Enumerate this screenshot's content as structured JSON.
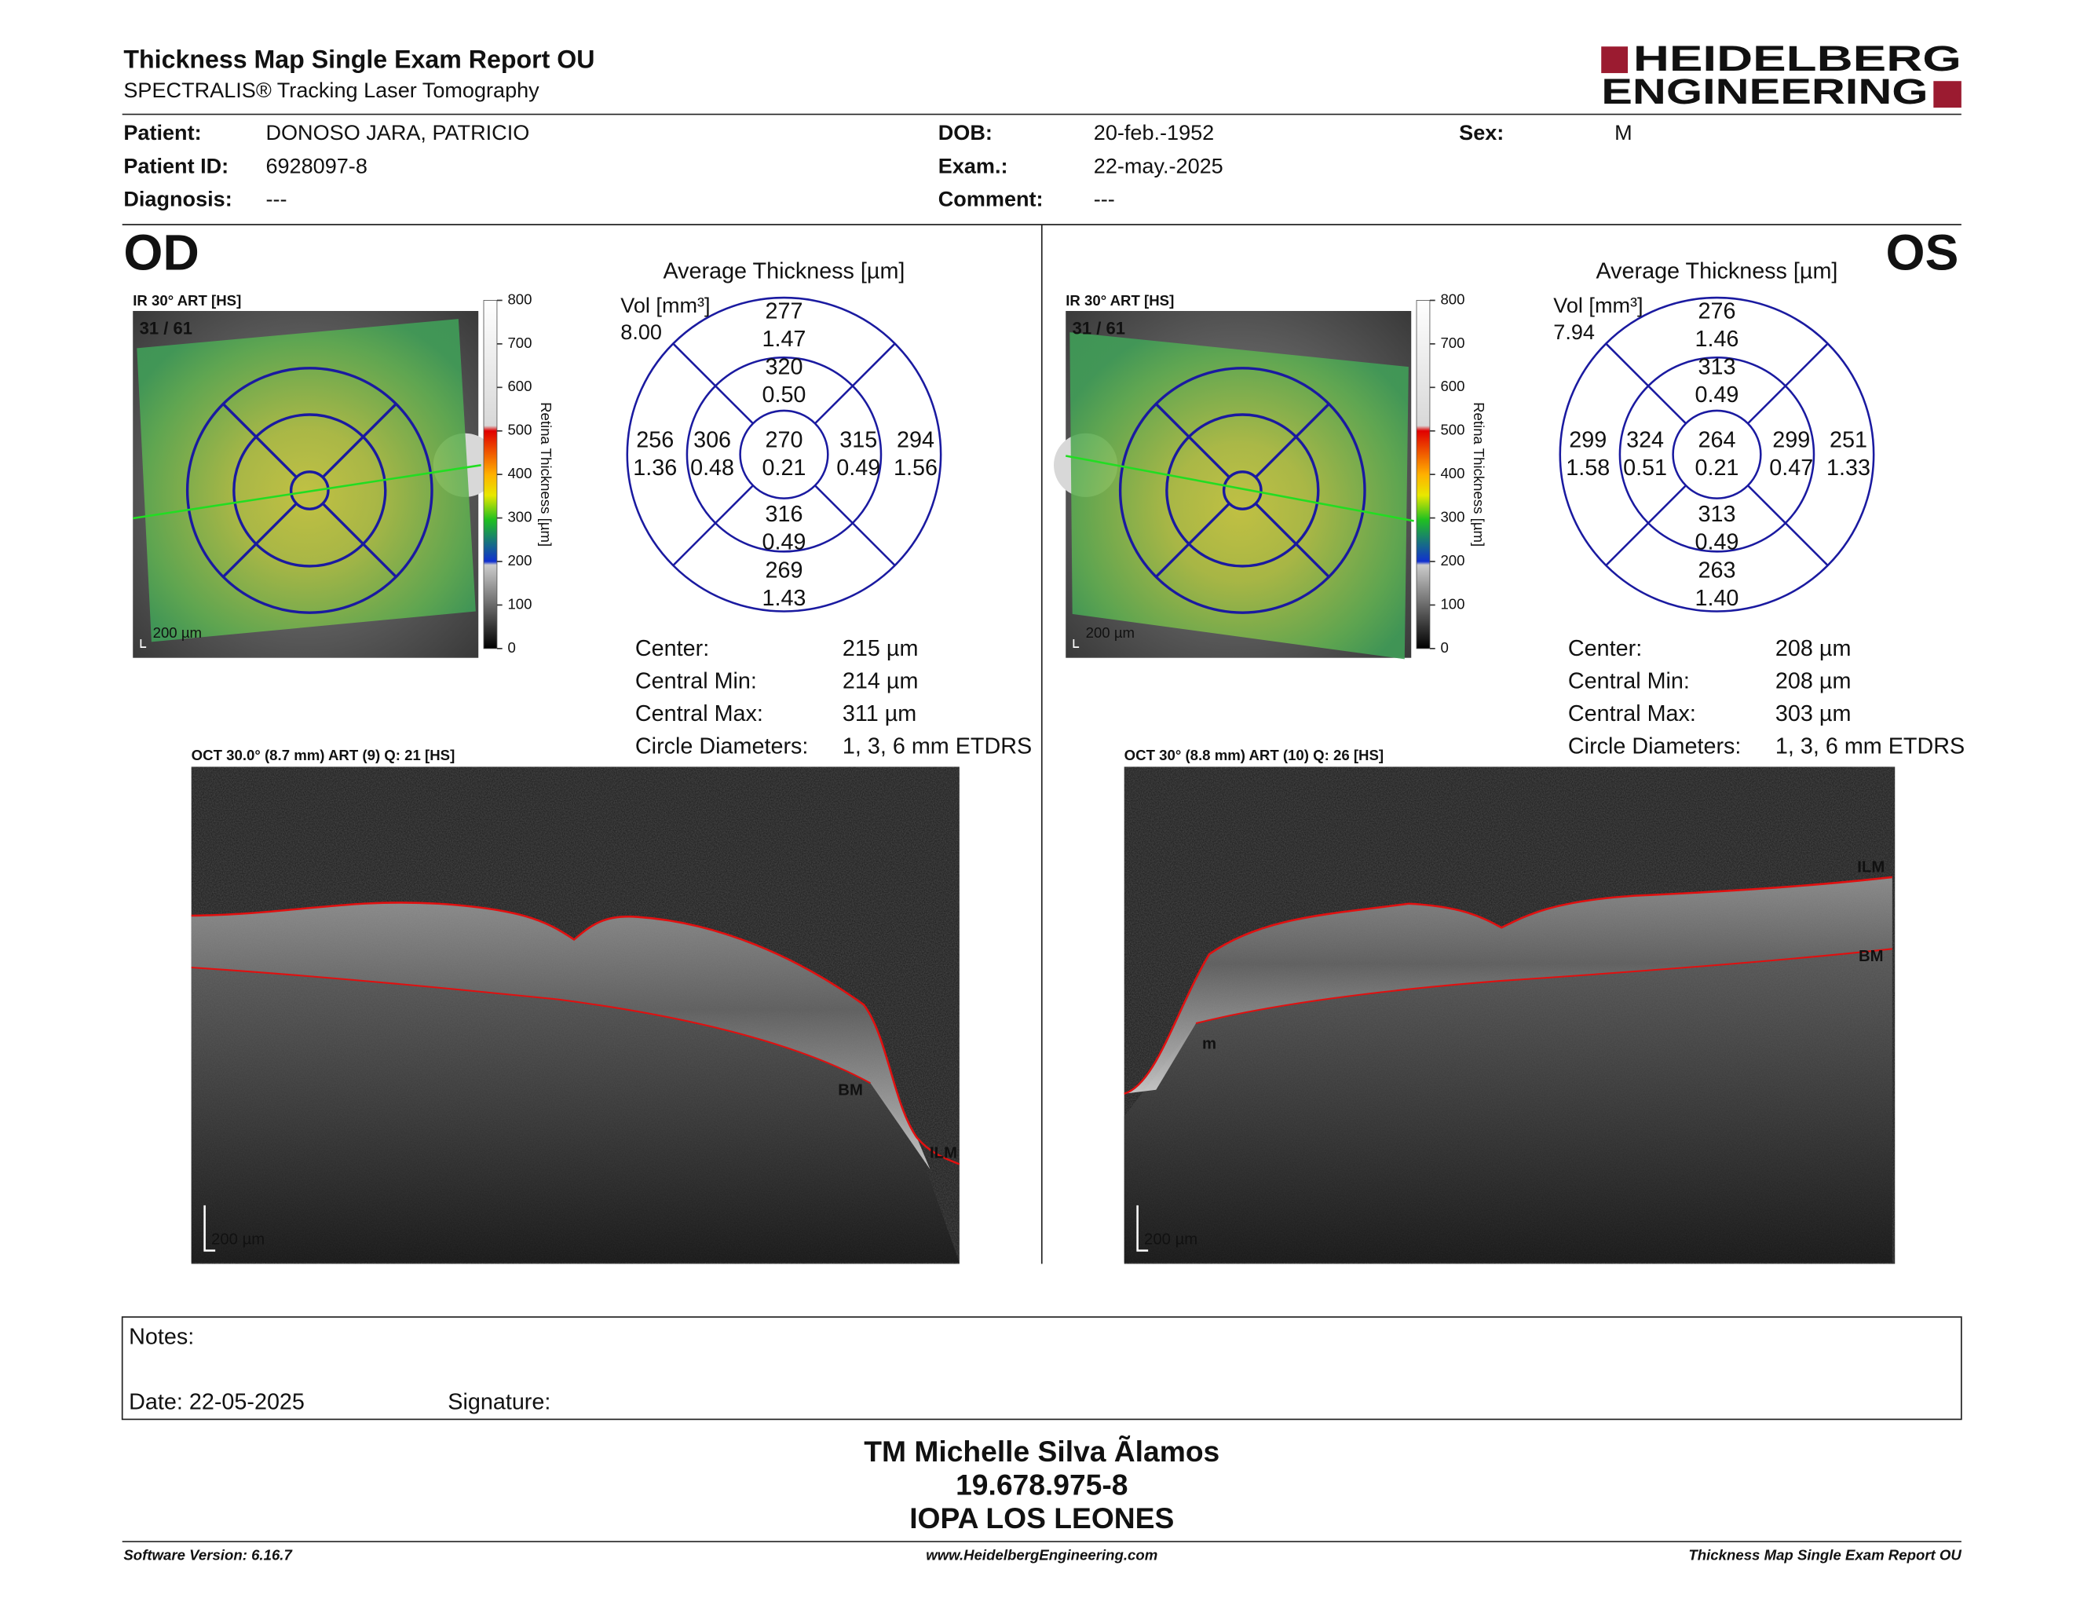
{
  "header": {
    "title": "Thickness Map Single Exam Report OU",
    "subtitle": "SPECTRALIS® Tracking Laser Tomography",
    "logo": [
      "HEIDELBERG",
      "ENGINEERING"
    ]
  },
  "patient": [
    {
      "label": "Patient:",
      "value": "DONOSO JARA, PATRICIO"
    },
    {
      "label": "DOB:",
      "value": "20-feb.-1952"
    },
    {
      "label": "Sex:",
      "value": "M"
    },
    {
      "label": "Patient ID:",
      "value": "6928097-8"
    },
    {
      "label": "Exam.:",
      "value": "22-may.-2025"
    },
    {
      "label": "Diagnosis:",
      "value": "---"
    },
    {
      "label": "Comment:",
      "value": "---"
    }
  ],
  "eyes": [
    {
      "eye": "OD",
      "ir_label": "IR 30° ART [HS]",
      "frame": "31 / 61",
      "scale": "200 µm",
      "colorbar_ticks": [
        "800",
        "700",
        "600",
        "500",
        "400",
        "300",
        "200",
        "100",
        "0"
      ],
      "colorbar_label": "Retina Thickness [µm]",
      "grid_title": "Average Thickness [µm]",
      "vol_label": "Vol [mm³]",
      "vol_total": "8.00",
      "sectors": [
        {
          "thickness": "277",
          "volume": "1.47"
        },
        {
          "thickness": "320",
          "volume": "0.50"
        },
        {
          "thickness": "256",
          "volume": "1.36"
        },
        {
          "thickness": "306",
          "volume": "0.48"
        },
        {
          "thickness": "270",
          "volume": "0.21"
        },
        {
          "thickness": "315",
          "volume": "0.49"
        },
        {
          "thickness": "294",
          "volume": "1.56"
        },
        {
          "thickness": "316",
          "volume": "0.49"
        },
        {
          "thickness": "269",
          "volume": "1.43"
        }
      ],
      "stats": [
        {
          "label": "Center:",
          "value": "215 µm"
        },
        {
          "label": "Central Min:",
          "value": "214 µm"
        },
        {
          "label": "Central Max:",
          "value": "311 µm"
        },
        {
          "label": "Circle Diameters:",
          "value": "1, 3, 6 mm ETDRS"
        }
      ],
      "oct_label": "OCT 30.0° (8.7 mm) ART (9) Q: 21 [HS]",
      "oct_scale": "200 µm",
      "oct_markers": [
        "BM",
        "ILM"
      ]
    },
    {
      "eye": "OS",
      "ir_label": "IR 30° ART [HS]",
      "frame": "31 / 61",
      "scale": "200 µm",
      "colorbar_ticks": [
        "800",
        "700",
        "600",
        "500",
        "400",
        "300",
        "200",
        "100",
        "0"
      ],
      "colorbar_label": "Retina Thickness [µm]",
      "grid_title": "Average Thickness [µm]",
      "vol_label": "Vol [mm³]",
      "vol_total": "7.94",
      "sectors": [
        {
          "thickness": "276",
          "volume": "1.46"
        },
        {
          "thickness": "313",
          "volume": "0.49"
        },
        {
          "thickness": "299",
          "volume": "1.58"
        },
        {
          "thickness": "324",
          "volume": "0.51"
        },
        {
          "thickness": "264",
          "volume": "0.21"
        },
        {
          "thickness": "299",
          "volume": "0.47"
        },
        {
          "thickness": "251",
          "volume": "1.33"
        },
        {
          "thickness": "313",
          "volume": "0.49"
        },
        {
          "thickness": "263",
          "volume": "1.40"
        }
      ],
      "stats": [
        {
          "label": "Center:",
          "value": "208 µm"
        },
        {
          "label": "Central Min:",
          "value": "208 µm"
        },
        {
          "label": "Central Max:",
          "value": "303 µm"
        },
        {
          "label": "Circle Diameters:",
          "value": "1, 3, 6 mm ETDRS"
        }
      ],
      "oct_label": "OCT 30° (8.8 mm) ART (10) Q: 26 [HS]",
      "oct_scale": "200 µm",
      "oct_markers": [
        "ILM",
        "BM",
        "m"
      ]
    }
  ],
  "notes": {
    "label": "Notes:",
    "date": "Date: 22-05-2025",
    "signature": "Signature:"
  },
  "signature_block": [
    "TM Michelle Silva Ãlamos",
    "19.678.975-8",
    "IOPA LOS LEONES"
  ],
  "footer": {
    "left": "Software Version: 6.16.7",
    "center": "www.HeidelbergEngineering.com",
    "right": "Thickness Map Single Exam Report OU"
  }
}
